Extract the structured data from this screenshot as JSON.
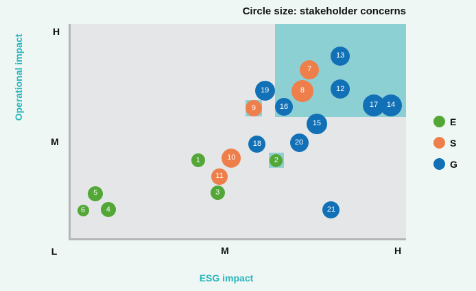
{
  "title": "Circle size: stakeholder concerns",
  "axes": {
    "x_label": "ESG impact",
    "y_label": "Operational impact",
    "origin_tick": "L",
    "x_tick_mid": "M",
    "x_tick_high": "H",
    "y_tick_mid": "M",
    "y_tick_high": "H"
  },
  "legend": {
    "items": [
      {
        "label": "E",
        "color": "#52a737"
      },
      {
        "label": "S",
        "color": "#ee7f4b"
      },
      {
        "label": "G",
        "color": "#1170b6"
      }
    ]
  },
  "colors": {
    "page_bg": "#eef7f3",
    "plot_bg": "#e4e6e7",
    "highlight_region": "#8dd0d4",
    "axis_line": "#b3b6b8",
    "accent_text": "#29b5bd",
    "title_text": "#111111",
    "bubble_text": "#ffffff"
  },
  "chart_data": {
    "type": "scatter",
    "subtype": "bubble",
    "title": "Circle size: stakeholder concerns",
    "xlabel": "ESG impact",
    "ylabel": "Operational impact",
    "x_scale": [
      "L",
      "M",
      "H"
    ],
    "y_scale": [
      "L",
      "M",
      "H"
    ],
    "size_meaning": "stakeholder concerns",
    "grid": false,
    "legend_position": "right",
    "groups": {
      "E": "#52a737",
      "S": "#ee7f4b",
      "G": "#1170b6"
    },
    "highlight_region": {
      "x_start_pct": 60.9,
      "x_end_pct": 100,
      "y_start_pct": 56.5,
      "y_end_pct": 100,
      "color": "#8dd0d4"
    },
    "points": [
      {
        "id": 1,
        "group": "E",
        "x_pct": 38.0,
        "y_pct": 36.4,
        "r": 10
      },
      {
        "id": 2,
        "group": "E",
        "x_pct": 61.3,
        "y_pct": 36.4,
        "r": 9.5,
        "square": 22
      },
      {
        "id": 3,
        "group": "E",
        "x_pct": 43.8,
        "y_pct": 21.1,
        "r": 10.5
      },
      {
        "id": 4,
        "group": "E",
        "x_pct": 11.2,
        "y_pct": 13.4,
        "r": 11
      },
      {
        "id": 5,
        "group": "E",
        "x_pct": 7.4,
        "y_pct": 20.8,
        "r": 11
      },
      {
        "id": 6,
        "group": "E",
        "x_pct": 3.7,
        "y_pct": 12.8,
        "r": 8.5
      },
      {
        "id": 7,
        "group": "S",
        "x_pct": 71.2,
        "y_pct": 78.6,
        "r": 14
      },
      {
        "id": 8,
        "group": "S",
        "x_pct": 69.1,
        "y_pct": 68.7,
        "r": 16
      },
      {
        "id": 9,
        "group": "S",
        "x_pct": 54.6,
        "y_pct": 60.7,
        "r": 12,
        "square": 24
      },
      {
        "id": 10,
        "group": "S",
        "x_pct": 47.9,
        "y_pct": 37.4,
        "r": 14
      },
      {
        "id": 11,
        "group": "S",
        "x_pct": 44.4,
        "y_pct": 28.8,
        "r": 12
      },
      {
        "id": 12,
        "group": "G",
        "x_pct": 80.4,
        "y_pct": 69.6,
        "r": 14
      },
      {
        "id": 13,
        "group": "G",
        "x_pct": 80.4,
        "y_pct": 85.0,
        "r": 14
      },
      {
        "id": 14,
        "group": "G",
        "x_pct": 95.5,
        "y_pct": 62.0,
        "r": 16,
        "z": 2
      },
      {
        "id": 15,
        "group": "G",
        "x_pct": 73.4,
        "y_pct": 53.4,
        "r": 15
      },
      {
        "id": 16,
        "group": "G",
        "x_pct": 63.6,
        "y_pct": 61.3,
        "r": 13
      },
      {
        "id": 17,
        "group": "G",
        "x_pct": 90.4,
        "y_pct": 62.0,
        "r": 16
      },
      {
        "id": 18,
        "group": "G",
        "x_pct": 55.6,
        "y_pct": 43.8,
        "r": 12.5
      },
      {
        "id": 19,
        "group": "G",
        "x_pct": 57.9,
        "y_pct": 69.0,
        "r": 14.5
      },
      {
        "id": 20,
        "group": "G",
        "x_pct": 68.1,
        "y_pct": 44.7,
        "r": 13.5
      },
      {
        "id": 21,
        "group": "G",
        "x_pct": 77.7,
        "y_pct": 13.1,
        "r": 12.5
      }
    ]
  }
}
